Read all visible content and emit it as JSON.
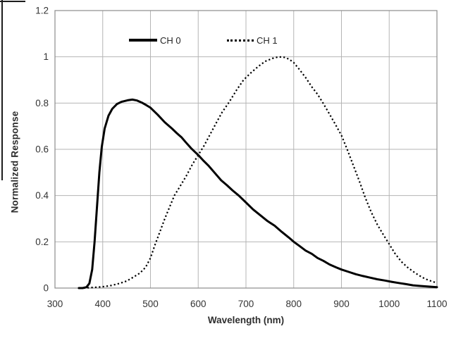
{
  "chart_data": {
    "type": "line",
    "title": "",
    "xlabel": "Wavelength (nm)",
    "ylabel": "Normalized Response",
    "xlim": [
      300,
      1100
    ],
    "ylim": [
      0,
      1.2
    ],
    "grid": true,
    "legend_position": "top-inside",
    "x_ticks": [
      300,
      400,
      500,
      600,
      700,
      800,
      900,
      1000,
      1100
    ],
    "y_ticks": [
      {
        "v": 0,
        "label": "0"
      },
      {
        "v": 0.2,
        "label": "0.2"
      },
      {
        "v": 0.4,
        "label": "0.4"
      },
      {
        "v": 0.6,
        "label": "0.6"
      },
      {
        "v": 0.8,
        "label": "0.8"
      },
      {
        "v": 1,
        "label": "1"
      },
      {
        "v": 1.2,
        "label": "1.2"
      }
    ],
    "colors": {
      "curve": "#000000",
      "gridline": "#b5b5b5",
      "plot_border": "#8c8c8c",
      "text": "#333333"
    },
    "series": [
      {
        "name": "CH 0",
        "line_style": "solid",
        "color": "#000000",
        "points": [
          [
            350,
            0
          ],
          [
            358,
            0
          ],
          [
            366,
            0.004
          ],
          [
            372,
            0.02
          ],
          [
            378,
            0.08
          ],
          [
            383,
            0.2
          ],
          [
            388,
            0.35
          ],
          [
            393,
            0.5
          ],
          [
            398,
            0.61
          ],
          [
            404,
            0.69
          ],
          [
            412,
            0.745
          ],
          [
            420,
            0.775
          ],
          [
            430,
            0.796
          ],
          [
            440,
            0.806
          ],
          [
            452,
            0.812
          ],
          [
            462,
            0.815
          ],
          [
            472,
            0.811
          ],
          [
            482,
            0.802
          ],
          [
            492,
            0.79
          ],
          [
            500,
            0.78
          ],
          [
            515,
            0.75
          ],
          [
            530,
            0.717
          ],
          [
            545,
            0.69
          ],
          [
            555,
            0.67
          ],
          [
            565,
            0.652
          ],
          [
            575,
            0.628
          ],
          [
            585,
            0.605
          ],
          [
            595,
            0.585
          ],
          [
            600,
            0.575
          ],
          [
            610,
            0.553
          ],
          [
            622,
            0.528
          ],
          [
            635,
            0.497
          ],
          [
            648,
            0.466
          ],
          [
            660,
            0.445
          ],
          [
            672,
            0.422
          ],
          [
            685,
            0.4
          ],
          [
            700,
            0.37
          ],
          [
            715,
            0.34
          ],
          [
            730,
            0.315
          ],
          [
            745,
            0.29
          ],
          [
            760,
            0.27
          ],
          [
            775,
            0.243
          ],
          [
            790,
            0.218
          ],
          [
            800,
            0.2
          ],
          [
            812,
            0.182
          ],
          [
            825,
            0.162
          ],
          [
            838,
            0.148
          ],
          [
            850,
            0.13
          ],
          [
            862,
            0.118
          ],
          [
            875,
            0.102
          ],
          [
            888,
            0.09
          ],
          [
            900,
            0.08
          ],
          [
            915,
            0.07
          ],
          [
            930,
            0.06
          ],
          [
            945,
            0.052
          ],
          [
            960,
            0.045
          ],
          [
            975,
            0.038
          ],
          [
            990,
            0.033
          ],
          [
            1005,
            0.027
          ],
          [
            1020,
            0.022
          ],
          [
            1035,
            0.017
          ],
          [
            1050,
            0.012
          ],
          [
            1065,
            0.009
          ],
          [
            1080,
            0.007
          ],
          [
            1100,
            0.004
          ]
        ]
      },
      {
        "name": "CH 1",
        "line_style": "dotted",
        "color": "#000000",
        "points": [
          [
            360,
            0
          ],
          [
            375,
            0.002
          ],
          [
            390,
            0.004
          ],
          [
            405,
            0.007
          ],
          [
            420,
            0.012
          ],
          [
            435,
            0.02
          ],
          [
            450,
            0.03
          ],
          [
            465,
            0.048
          ],
          [
            478,
            0.065
          ],
          [
            490,
            0.09
          ],
          [
            500,
            0.13
          ],
          [
            510,
            0.19
          ],
          [
            520,
            0.245
          ],
          [
            530,
            0.3
          ],
          [
            540,
            0.35
          ],
          [
            550,
            0.4
          ],
          [
            562,
            0.44
          ],
          [
            575,
            0.485
          ],
          [
            588,
            0.535
          ],
          [
            600,
            0.575
          ],
          [
            612,
            0.615
          ],
          [
            625,
            0.665
          ],
          [
            638,
            0.715
          ],
          [
            650,
            0.76
          ],
          [
            665,
            0.805
          ],
          [
            680,
            0.855
          ],
          [
            695,
            0.9
          ],
          [
            710,
            0.93
          ],
          [
            725,
            0.957
          ],
          [
            740,
            0.98
          ],
          [
            755,
            0.993
          ],
          [
            768,
            1.0
          ],
          [
            780,
            0.998
          ],
          [
            790,
            0.99
          ],
          [
            800,
            0.975
          ],
          [
            812,
            0.945
          ],
          [
            825,
            0.91
          ],
          [
            838,
            0.87
          ],
          [
            850,
            0.838
          ],
          [
            862,
            0.798
          ],
          [
            875,
            0.752
          ],
          [
            888,
            0.705
          ],
          [
            900,
            0.66
          ],
          [
            912,
            0.6
          ],
          [
            925,
            0.53
          ],
          [
            938,
            0.46
          ],
          [
            950,
            0.39
          ],
          [
            962,
            0.33
          ],
          [
            975,
            0.275
          ],
          [
            988,
            0.23
          ],
          [
            1000,
            0.19
          ],
          [
            1012,
            0.15
          ],
          [
            1025,
            0.115
          ],
          [
            1038,
            0.09
          ],
          [
            1050,
            0.072
          ],
          [
            1062,
            0.055
          ],
          [
            1075,
            0.04
          ],
          [
            1088,
            0.03
          ],
          [
            1100,
            0.022
          ]
        ]
      }
    ]
  }
}
